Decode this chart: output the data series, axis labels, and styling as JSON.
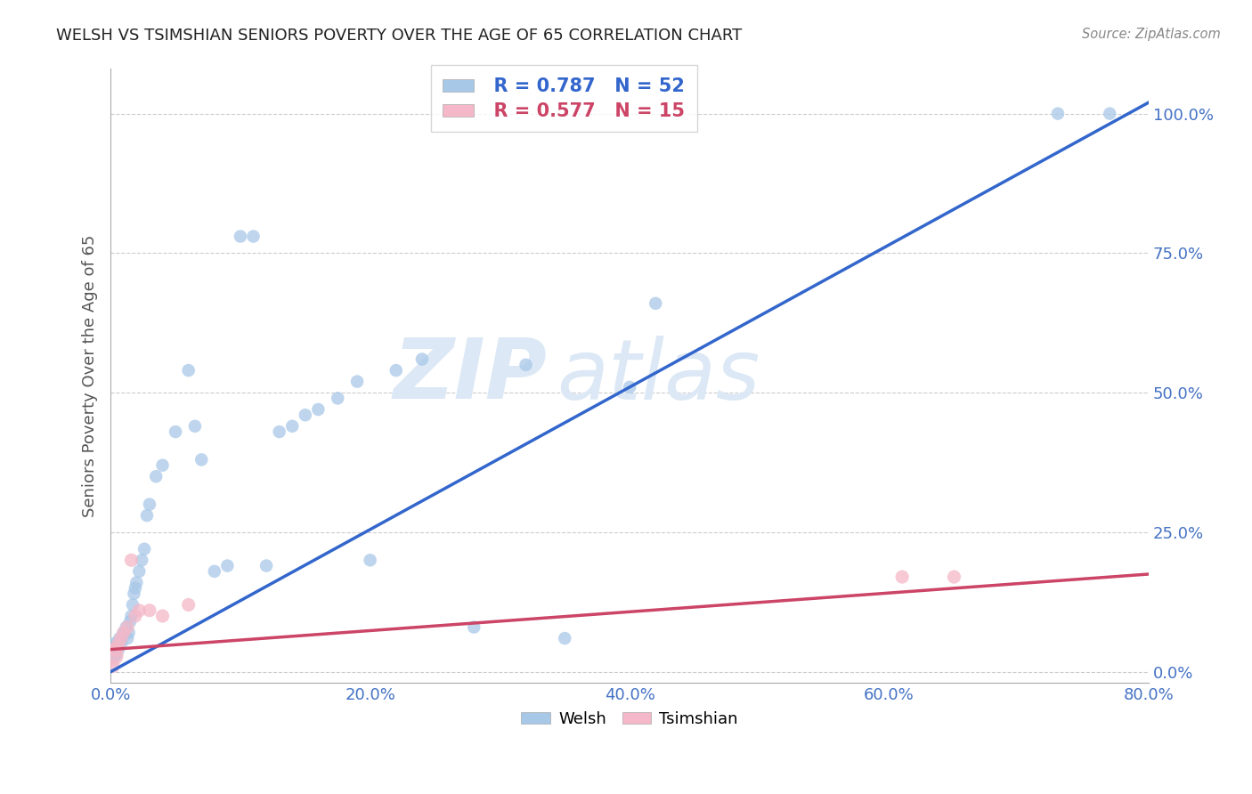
{
  "title": "WELSH VS TSIMSHIAN SENIORS POVERTY OVER THE AGE OF 65 CORRELATION CHART",
  "source": "Source: ZipAtlas.com",
  "ylabel": "Seniors Poverty Over the Age of 65",
  "welsh_R": 0.787,
  "welsh_N": 52,
  "tsimshian_R": 0.577,
  "tsimshian_N": 15,
  "welsh_color": "#a8c8e8",
  "tsimshian_color": "#f4b8c8",
  "welsh_line_color": "#3366cc",
  "tsimshian_line_color": "#cc4466",
  "watermark_color": "#dce8f5",
  "xlim": [
    0.0,
    0.8
  ],
  "ylim": [
    -0.02,
    1.08
  ],
  "xticks": [
    0.0,
    0.2,
    0.4,
    0.6,
    0.8
  ],
  "yticks": [
    0.0,
    0.25,
    0.5,
    0.75,
    1.0
  ],
  "xtick_labels": [
    "0.0%",
    "20.0%",
    "40.0%",
    "60.0%",
    "80.0%"
  ],
  "ytick_labels": [
    "0.0%",
    "25.0%",
    "50.0%",
    "75.0%",
    "100.0%"
  ],
  "tick_label_color": "#4472c4",
  "axis_label_color": "#555555",
  "title_color": "#222222",
  "source_color": "#888888",
  "background_color": "#ffffff",
  "grid_color": "#cccccc",
  "welsh_x": [
    0.001,
    0.002,
    0.003,
    0.004,
    0.005,
    0.006,
    0.007,
    0.008,
    0.009,
    0.01,
    0.011,
    0.012,
    0.013,
    0.014,
    0.015,
    0.016,
    0.017,
    0.018,
    0.019,
    0.02,
    0.022,
    0.024,
    0.026,
    0.028,
    0.03,
    0.035,
    0.04,
    0.05,
    0.06,
    0.065,
    0.07,
    0.08,
    0.09,
    0.1,
    0.11,
    0.12,
    0.13,
    0.14,
    0.15,
    0.16,
    0.175,
    0.19,
    0.2,
    0.22,
    0.24,
    0.28,
    0.32,
    0.35,
    0.4,
    0.42,
    0.73,
    0.77
  ],
  "welsh_y": [
    0.03,
    0.04,
    0.05,
    0.03,
    0.05,
    0.04,
    0.06,
    0.05,
    0.06,
    0.07,
    0.07,
    0.08,
    0.06,
    0.07,
    0.09,
    0.1,
    0.12,
    0.14,
    0.15,
    0.16,
    0.18,
    0.2,
    0.22,
    0.28,
    0.3,
    0.35,
    0.37,
    0.43,
    0.54,
    0.44,
    0.38,
    0.18,
    0.19,
    0.78,
    0.78,
    0.19,
    0.43,
    0.44,
    0.46,
    0.47,
    0.49,
    0.52,
    0.2,
    0.54,
    0.56,
    0.08,
    0.55,
    0.06,
    0.51,
    0.66,
    1.0,
    1.0
  ],
  "welsh_sizes": [
    200,
    150,
    120,
    120,
    110,
    110,
    110,
    110,
    110,
    110,
    110,
    110,
    110,
    110,
    110,
    110,
    110,
    110,
    110,
    110,
    110,
    110,
    110,
    110,
    110,
    110,
    110,
    110,
    110,
    110,
    110,
    110,
    110,
    110,
    110,
    110,
    110,
    110,
    110,
    110,
    110,
    110,
    110,
    110,
    110,
    110,
    110,
    110,
    110,
    110,
    110,
    110
  ],
  "tsimshian_x": [
    0.001,
    0.002,
    0.004,
    0.006,
    0.008,
    0.01,
    0.013,
    0.016,
    0.019,
    0.022,
    0.03,
    0.04,
    0.06,
    0.61,
    0.65
  ],
  "tsimshian_y": [
    0.03,
    0.01,
    0.04,
    0.05,
    0.06,
    0.07,
    0.08,
    0.2,
    0.1,
    0.11,
    0.11,
    0.1,
    0.12,
    0.17,
    0.17
  ],
  "tsimshian_sizes": [
    350,
    120,
    150,
    120,
    120,
    120,
    120,
    120,
    120,
    120,
    120,
    120,
    120,
    120,
    120
  ],
  "welsh_line_x": [
    0.0,
    0.8
  ],
  "welsh_line_y": [
    0.0,
    1.02
  ],
  "tsimshian_line_x": [
    0.0,
    0.8
  ],
  "tsimshian_line_y": [
    0.04,
    0.175
  ]
}
